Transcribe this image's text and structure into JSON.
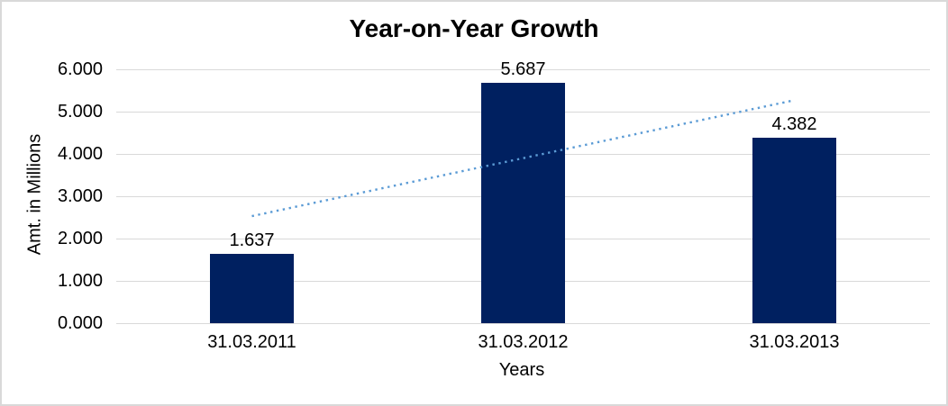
{
  "chart_data": {
    "type": "bar",
    "title": "Year-on-Year Growth",
    "xlabel": "Years",
    "ylabel": "Amt. in Millions",
    "categories": [
      "31.03.2011",
      "31.03.2012",
      "31.03.2013"
    ],
    "values": [
      1.637,
      5.687,
      4.382
    ],
    "data_labels": [
      "1.637",
      "5.687",
      "4.382"
    ],
    "ylim": [
      0,
      6
    ],
    "ytick_labels": [
      "0.000",
      "1.000",
      "2.000",
      "3.000",
      "4.000",
      "5.000",
      "6.000"
    ],
    "grid": true,
    "legend_position": "none",
    "bar_color": "#002060",
    "gridline_color": "#d9d9d9",
    "trendline": {
      "type": "linear",
      "style": "dotted",
      "color": "#5b9bd5",
      "start_category_index": 0,
      "end_category_index": 2,
      "start_value": 2.53,
      "end_value": 5.27
    }
  }
}
